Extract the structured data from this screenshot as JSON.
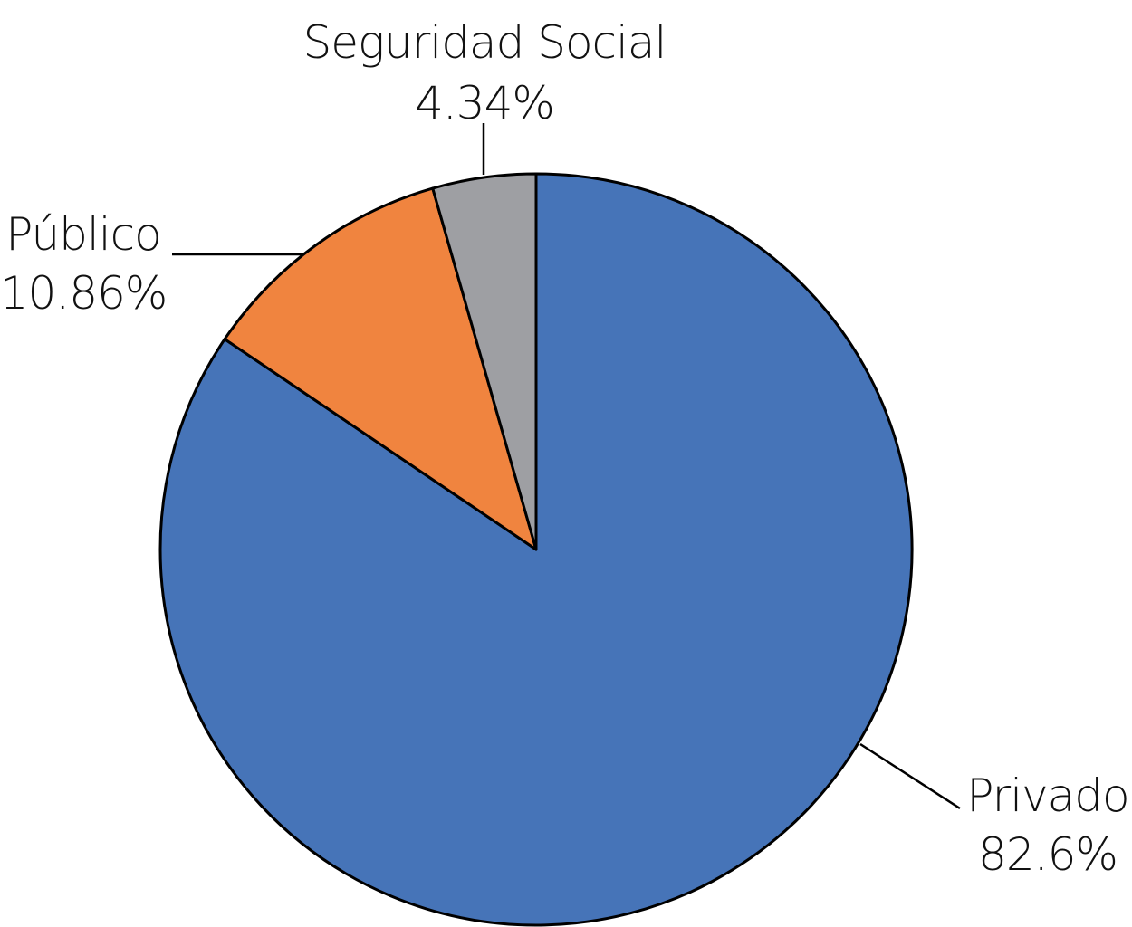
{
  "chart_data": {
    "type": "pie",
    "start_angle_deg": 0,
    "direction": "clockwise",
    "slices": [
      {
        "label": "Privado",
        "value": 82.6,
        "value_label": "82.6%",
        "color": "#4674B8"
      },
      {
        "label": "Público",
        "value": 10.86,
        "value_label": "10.86%",
        "color": "#F0843F"
      },
      {
        "label": "Seguridad Social",
        "value": 4.34,
        "value_label": "4.34%",
        "color": "#9E9FA3"
      }
    ]
  }
}
